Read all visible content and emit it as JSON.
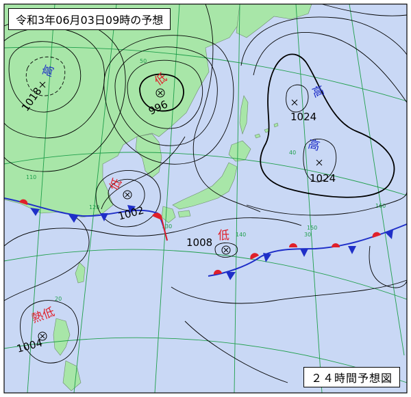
{
  "header": {
    "title": "令和3年06月03日09時の予想"
  },
  "footer": {
    "caption": "２４時間予想図"
  },
  "colors": {
    "sea": "#c9d8f5",
    "land": "#a8e6a8",
    "isobar": "#000000",
    "grid": "#1e9e4a",
    "high_label": "#1f2fc8",
    "low_label": "#e0202a",
    "cold_front": "#1f2fc8",
    "warm_front": "#e0202a"
  },
  "pressure_systems": [
    {
      "kind": "high",
      "label": "高",
      "value": "1018"
    },
    {
      "kind": "low",
      "label": "低",
      "value": "996"
    },
    {
      "kind": "high",
      "label": "高",
      "value": "1024"
    },
    {
      "kind": "high",
      "label": "高",
      "value": "1024"
    },
    {
      "kind": "low",
      "label": "低",
      "value": "1002"
    },
    {
      "kind": "low",
      "label": "低",
      "value": "1008"
    },
    {
      "kind": "tropical-low",
      "label": "熱低",
      "value": "1004"
    }
  ],
  "grid_labels": {
    "latitudes": [
      "50",
      "40",
      "30",
      "20"
    ],
    "longitudes": [
      "110",
      "120",
      "130",
      "140",
      "150",
      "160"
    ]
  }
}
